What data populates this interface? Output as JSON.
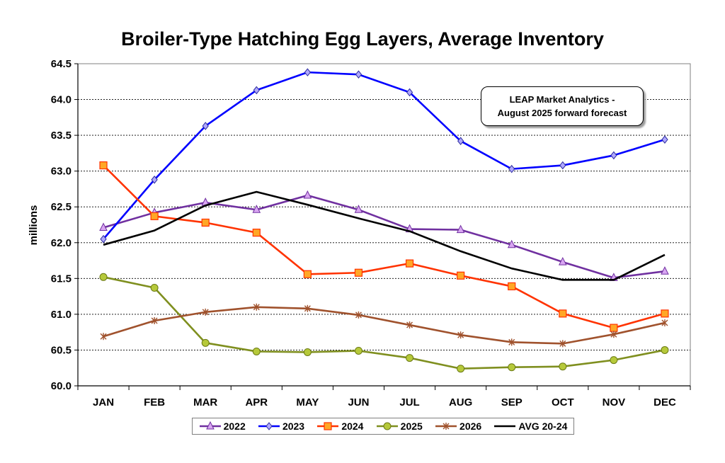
{
  "chart_data": {
    "type": "line",
    "title": "Broiler-Type Hatching Egg Layers, Average Inventory",
    "xlabel": "",
    "ylabel": "millions",
    "ylim": [
      60.0,
      64.5
    ],
    "yticks": [
      "60.0",
      "60.5",
      "61.0",
      "61.5",
      "62.0",
      "62.5",
      "63.0",
      "63.5",
      "64.0",
      "64.5"
    ],
    "grid": true,
    "legend_position": "bottom",
    "categories": [
      "JAN",
      "FEB",
      "MAR",
      "APR",
      "MAY",
      "JUN",
      "JUL",
      "AUG",
      "SEP",
      "OCT",
      "NOV",
      "DEC"
    ],
    "annotation": [
      "LEAP Market Analytics -",
      "August 2025 forward forecast"
    ],
    "series": [
      {
        "name": "2022",
        "color": "#7030A0",
        "marker": "triangle",
        "values": [
          62.21,
          62.42,
          62.56,
          62.46,
          62.66,
          62.46,
          62.19,
          62.18,
          61.97,
          61.73,
          61.51,
          61.6
        ]
      },
      {
        "name": "2023",
        "color": "#0000FF",
        "marker": "diamond",
        "values": [
          62.05,
          62.88,
          63.63,
          64.13,
          64.38,
          64.35,
          64.1,
          63.42,
          63.03,
          63.08,
          63.22,
          63.44
        ]
      },
      {
        "name": "2024",
        "color": "#FF3300",
        "marker": "square",
        "values": [
          63.08,
          62.37,
          62.28,
          62.14,
          61.56,
          61.58,
          61.71,
          61.54,
          61.39,
          61.01,
          60.81,
          61.01
        ]
      },
      {
        "name": "2025",
        "color": "#7F8F1F",
        "marker": "circle",
        "values": [
          61.52,
          61.37,
          60.6,
          60.48,
          60.47,
          60.49,
          60.39,
          60.24,
          60.26,
          60.27,
          60.36,
          60.5
        ]
      },
      {
        "name": "2026",
        "color": "#A0522D",
        "marker": "star",
        "values": [
          60.69,
          60.91,
          61.03,
          61.1,
          61.08,
          60.99,
          60.85,
          60.71,
          60.61,
          60.59,
          60.72,
          60.88
        ]
      },
      {
        "name": "AVG 20-24",
        "color": "#000000",
        "marker": "none",
        "values": [
          61.97,
          62.17,
          62.52,
          62.71,
          62.53,
          62.34,
          62.16,
          61.88,
          61.64,
          61.48,
          61.48,
          61.83
        ]
      }
    ]
  }
}
